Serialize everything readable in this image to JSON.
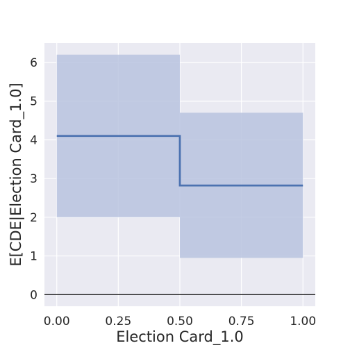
{
  "chart_data": {
    "type": "line",
    "title": "",
    "xlabel": "Election Card_1.0",
    "ylabel": "E[CDE|Election Card_1.0]",
    "xlim": [
      -0.05,
      1.05
    ],
    "ylim": [
      -0.3,
      6.5
    ],
    "xticks": [
      0.0,
      0.25,
      0.5,
      0.75,
      1.0
    ],
    "xtick_labels": [
      "0.00",
      "0.25",
      "0.50",
      "0.75",
      "1.00"
    ],
    "yticks": [
      0,
      1,
      2,
      3,
      4,
      5,
      6
    ],
    "ytick_labels": [
      "0",
      "1",
      "2",
      "3",
      "4",
      "5",
      "6"
    ],
    "grid": true,
    "series": [
      {
        "x": [
          0.0,
          0.5,
          0.5,
          1.0
        ],
        "y": [
          4.1,
          4.1,
          2.82,
          2.82
        ]
      }
    ],
    "bands": [
      {
        "x0": 0.0,
        "x1": 0.5,
        "lower": 2.0,
        "upper": 6.2
      },
      {
        "x0": 0.5,
        "x1": 1.0,
        "lower": 0.95,
        "upper": 4.7
      }
    ],
    "reference_line_y": 0,
    "colors": {
      "background": "#eaeaf2",
      "grid": "#ffffff",
      "line": "#4c72b0",
      "band": "#b8c3df",
      "reference": "#262626"
    }
  }
}
